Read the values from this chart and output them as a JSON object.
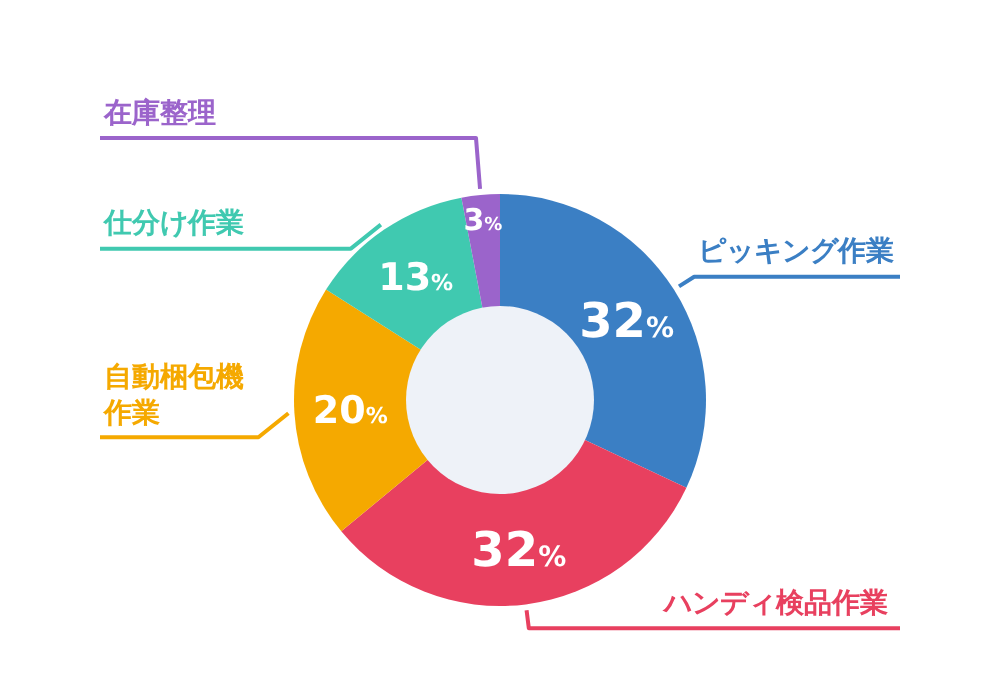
{
  "chart_data": {
    "type": "donut",
    "categories": [
      "ピッキング作業",
      "ハンディ検品作業",
      "自動梱包機作業",
      "仕分け作業",
      "在庫整理"
    ],
    "values": [
      32,
      32,
      20,
      13,
      3
    ],
    "colors": [
      "#3b7fc4",
      "#e8405f",
      "#f5a900",
      "#40c9b0",
      "#9b64cb"
    ],
    "value_labels": [
      "32%",
      "32%",
      "20%",
      "13%",
      "3%"
    ]
  }
}
